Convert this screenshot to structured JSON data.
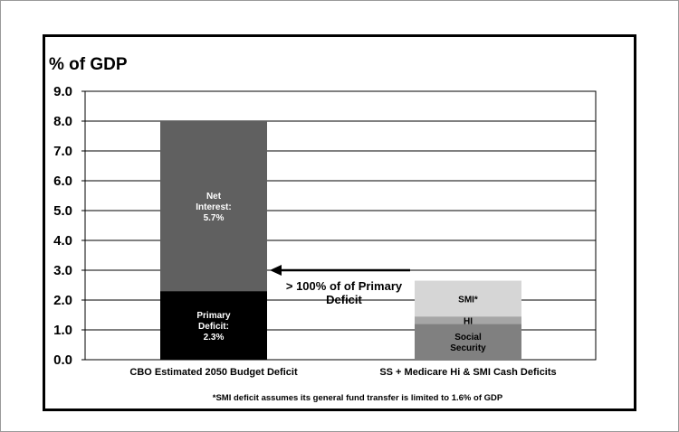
{
  "chart_data": {
    "type": "bar",
    "stacked": true,
    "ylabel": "% of GDP",
    "ylim": [
      0,
      9
    ],
    "yticks": [
      "0.0",
      "1.0",
      "2.0",
      "3.0",
      "4.0",
      "5.0",
      "6.0",
      "7.0",
      "8.0",
      "9.0"
    ],
    "grid": true,
    "categories": [
      "CBO Estimated 2050 Budget Deficit",
      "SS + Medicare Hi & SMI Cash Deficits"
    ],
    "bars": [
      {
        "category": "CBO Estimated 2050 Budget Deficit",
        "segments": [
          {
            "label_lines": [
              "Primary",
              "Deficit:",
              "2.3%"
            ],
            "value": 2.3,
            "color": "#000000",
            "text_color": "light"
          },
          {
            "label_lines": [
              "Net",
              "Interest:",
              "5.7%"
            ],
            "value": 5.7,
            "color": "#606060",
            "text_color": "light"
          }
        ]
      },
      {
        "category": "SS + Medicare Hi & SMI Cash Deficits",
        "segments": [
          {
            "label_lines": [
              "Social",
              "Security"
            ],
            "value": 1.2,
            "color": "#808080",
            "text_color": "dark"
          },
          {
            "label_lines": [
              "HI"
            ],
            "value": 0.25,
            "color": "#a6a6a6",
            "text_color": "dark"
          },
          {
            "label_lines": [
              "SMI*"
            ],
            "value": 1.2,
            "color": "#d6d6d6",
            "text_color": "dark"
          }
        ]
      }
    ],
    "annotation": {
      "lines": [
        "> 100% of of Primary",
        "Deficit"
      ],
      "arrow_y_value": 3.0
    },
    "footnote": "*SMI deficit assumes its general fund transfer is limited to 1.6% of GDP"
  }
}
